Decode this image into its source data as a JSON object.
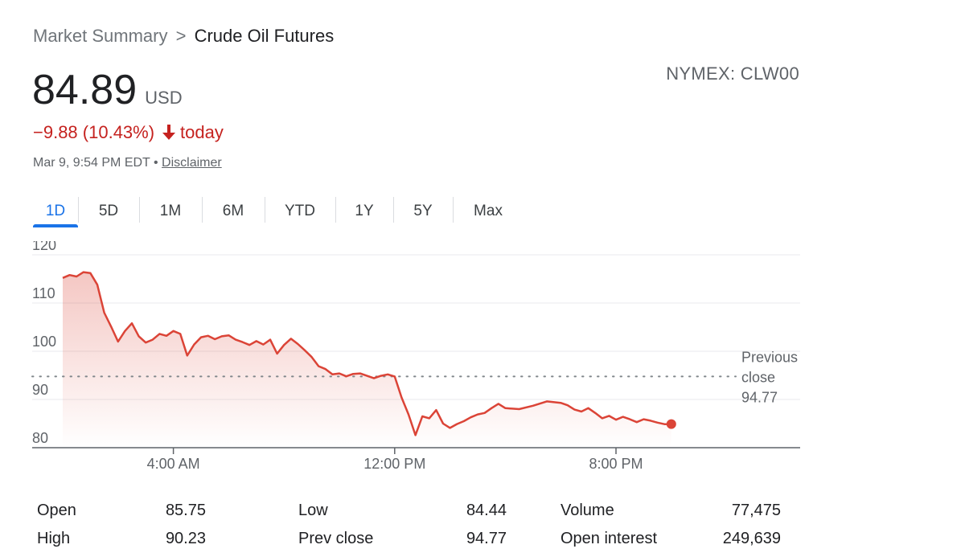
{
  "breadcrumb": {
    "parent": "Market Summary",
    "separator": ">",
    "current": "Crude Oil Futures"
  },
  "ticker": "NYMEX: CLW00",
  "price": {
    "value": "84.89",
    "currency": "USD"
  },
  "change": {
    "text": "−9.88 (10.43%)",
    "period": "today",
    "direction": "down",
    "color": "#c5221f",
    "icon": "arrow-down-icon"
  },
  "meta": {
    "timestamp": "Mar 9, 9:54 PM EDT",
    "bullet": "•",
    "disclaimer": "Disclaimer"
  },
  "tabs": [
    {
      "label": "1D",
      "active": true
    },
    {
      "label": "5D",
      "active": false
    },
    {
      "label": "1M",
      "active": false
    },
    {
      "label": "6M",
      "active": false
    },
    {
      "label": "YTD",
      "active": false
    },
    {
      "label": "1Y",
      "active": false
    },
    {
      "label": "5Y",
      "active": false
    },
    {
      "label": "Max",
      "active": false
    }
  ],
  "chart_data": {
    "type": "area",
    "x_ticks": [
      "4:00 AM",
      "12:00 PM",
      "8:00 PM"
    ],
    "y_ticks": [
      120,
      110,
      100,
      90,
      80
    ],
    "ylim": [
      80,
      120
    ],
    "previous_close": {
      "label_lines": [
        "Previous",
        "close",
        "94.77"
      ],
      "value": 94.77
    },
    "line_color": "#db4437",
    "series": [
      {
        "x_hours": [
          0,
          0.25,
          0.5,
          0.75,
          1,
          1.25,
          1.5,
          1.75,
          2,
          2.25,
          2.5,
          2.75,
          3,
          3.25,
          3.5,
          3.75,
          4,
          4.25,
          4.5,
          4.75,
          5,
          5.25,
          5.5,
          5.75,
          6,
          6.25,
          6.5,
          6.75,
          7,
          7.25,
          7.5,
          7.75,
          8,
          8.25,
          8.5,
          8.75,
          9,
          9.25,
          9.5,
          9.75,
          10,
          10.25,
          10.5,
          10.75,
          11,
          11.25,
          11.5,
          11.75,
          12,
          12.25,
          12.5,
          12.75,
          13,
          13.25,
          13.5,
          13.75,
          14,
          14.25,
          14.5,
          14.75,
          15,
          15.25,
          15.5,
          15.75,
          16,
          16.5,
          17,
          17.5,
          18,
          18.25,
          18.5,
          18.75,
          19,
          19.25,
          19.5,
          19.75,
          20,
          20.25,
          20.5,
          20.75,
          21,
          21.25,
          21.5,
          21.75,
          22
        ],
        "values": [
          115.2,
          115.8,
          115.5,
          116.4,
          116.2,
          113.8,
          108,
          105.1,
          102,
          104.2,
          105.8,
          103.1,
          101.8,
          102.4,
          103.6,
          103.2,
          104.2,
          103.6,
          99.1,
          101.4,
          102.9,
          103.2,
          102.5,
          103.1,
          103.3,
          102.4,
          101.9,
          101.3,
          102.1,
          101.4,
          102.4,
          99.5,
          101.3,
          102.6,
          101.5,
          100.2,
          98.8,
          96.9,
          96.3,
          95.2,
          95.4,
          94.8,
          95.3,
          95.4,
          94.9,
          94.4,
          94.9,
          95.2,
          94.77,
          90.4,
          86.9,
          82.6,
          86.5,
          86.1,
          87.8,
          85.0,
          84.1,
          84.9,
          85.5,
          86.3,
          86.9,
          87.2,
          88.2,
          89.1,
          88.2,
          88.0,
          88.7,
          89.6,
          89.3,
          88.8,
          87.9,
          87.5,
          88.2,
          87.2,
          86.1,
          86.6,
          85.8,
          86.4,
          85.9,
          85.3,
          85.9,
          85.6,
          85.2,
          84.89,
          84.89
        ]
      }
    ]
  },
  "stats": {
    "col1": {
      "label1": "Open",
      "value1": "85.75",
      "label2": "High",
      "value2": "90.23"
    },
    "col2": {
      "label1": "Low",
      "value1": "84.44",
      "label2": "Prev close",
      "value2": "94.77"
    },
    "col3": {
      "label1": "Volume",
      "value1": "77,475",
      "label2": "Open interest",
      "value2": "249,639"
    }
  }
}
